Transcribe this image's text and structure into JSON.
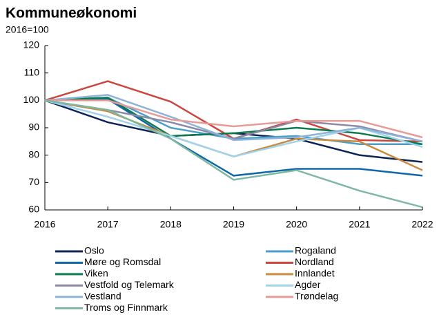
{
  "chart_data": {
    "type": "line",
    "title": "Kommuneøkonomi",
    "subtitle": "2016=100",
    "x": [
      2016,
      2017,
      2018,
      2019,
      2020,
      2021,
      2022
    ],
    "xlim": [
      2016,
      2022
    ],
    "xticks": [
      2016,
      2017,
      2018,
      2019,
      2020,
      2021,
      2022
    ],
    "ylim": [
      60,
      120
    ],
    "yticks": [
      60,
      70,
      80,
      90,
      100,
      110,
      120
    ],
    "grid": false,
    "series": [
      {
        "name": "Oslo",
        "color": "#0d2556",
        "values": [
          100,
          92,
          87,
          88,
          86,
          80,
          77.5
        ]
      },
      {
        "name": "Rogaland",
        "color": "#4a9fc8",
        "values": [
          100,
          101,
          90,
          86,
          87,
          84,
          84
        ]
      },
      {
        "name": "Møre og Romsdal",
        "color": "#1168a8",
        "values": [
          100,
          100.5,
          86,
          72.5,
          75,
          75,
          72.5
        ]
      },
      {
        "name": "Nordland",
        "color": "#c9473e",
        "values": [
          100,
          107,
          99.5,
          86,
          93,
          85.5,
          85
        ]
      },
      {
        "name": "Viken",
        "color": "#0b7a4c",
        "values": [
          100,
          101,
          87,
          88,
          90,
          88,
          84
        ]
      },
      {
        "name": "Innlandet",
        "color": "#c98a3e",
        "values": [
          100,
          96,
          87,
          79.5,
          86,
          85,
          74.5
        ]
      },
      {
        "name": "Vestfold og Telemark",
        "color": "#8b89a8",
        "values": [
          100,
          96.5,
          92,
          86,
          92.5,
          90.5,
          85
        ]
      },
      {
        "name": "Agder",
        "color": "#9fd3ee",
        "values": [
          100,
          94,
          87,
          79.5,
          85,
          90,
          83
        ]
      },
      {
        "name": "Vestland",
        "color": "#8fb3d8",
        "values": [
          100,
          102,
          94,
          85.5,
          86.5,
          90,
          85
        ]
      },
      {
        "name": "Trøndelag",
        "color": "#e89a96",
        "values": [
          100,
          100,
          93,
          90.5,
          92.5,
          92.5,
          86.5
        ]
      },
      {
        "name": "Troms og Finnmark",
        "color": "#7fb8a0",
        "values": [
          100,
          96.5,
          86,
          71,
          74.5,
          67,
          61
        ]
      }
    ]
  }
}
